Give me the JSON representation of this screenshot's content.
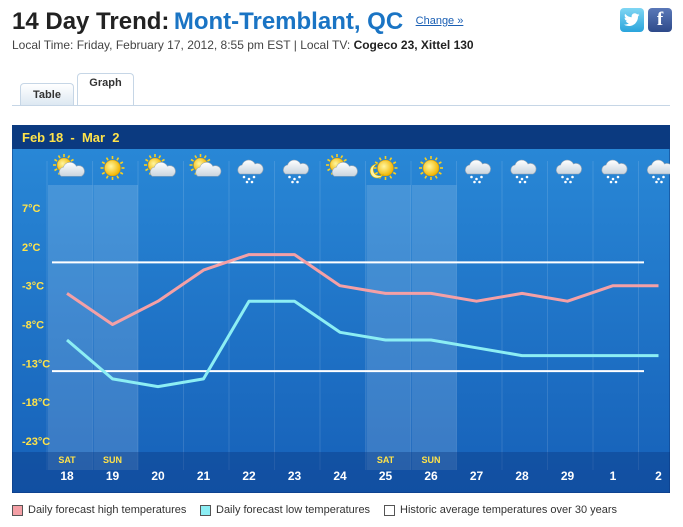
{
  "header": {
    "title_lead": "14 Day Trend:",
    "location": "Mont-Tremblant, QC",
    "change_label": "Change »",
    "local_time_label": "Local Time:",
    "local_time": "Friday, February 17, 2012, 8:55 pm EST",
    "separator": "|",
    "local_tv_label": "Local TV:",
    "local_tv": "Cogeco 23, Xittel 130"
  },
  "social": {
    "twitter_icon": "twitter-icon",
    "facebook_glyph": "f"
  },
  "tabs": [
    {
      "label": "Table",
      "active": false
    },
    {
      "label": "Graph",
      "active": true
    }
  ],
  "chart_data": {
    "type": "line",
    "title": "Feb 18  -  Mar  2",
    "x": [
      "18",
      "19",
      "20",
      "21",
      "22",
      "23",
      "24",
      "25",
      "26",
      "27",
      "28",
      "29",
      "1",
      "2"
    ],
    "weekend_labels": {
      "0": "SAT",
      "1": "SUN",
      "7": "SAT",
      "8": "SUN"
    },
    "icons": [
      "sun-cloud",
      "sun",
      "sun-cloud",
      "sun-cloud",
      "snow-cloud",
      "snow-cloud",
      "cloud-sun",
      "sun-moon",
      "sun",
      "snow-cloud",
      "snow-cloud",
      "snow-cloud",
      "snow-cloud",
      "snow-cloud"
    ],
    "y_ticks": [
      "7°C",
      "2°C",
      "-3°C",
      "-8°C",
      "-13°C",
      "-18°C",
      "-23°C"
    ],
    "ylim": [
      -23,
      7
    ],
    "series": [
      {
        "name": "Daily forecast high temperatures",
        "color": "#f4a0a6",
        "values": [
          -4,
          -8,
          -5,
          -1,
          1,
          1,
          -3,
          -4,
          -4,
          -5,
          -4,
          -5,
          -3,
          -3
        ]
      },
      {
        "name": "Daily forecast low temperatures",
        "color": "#8ceef4",
        "values": [
          -10,
          -15,
          -16,
          -15,
          -5,
          -5,
          -9,
          -10,
          -10,
          -11,
          -12,
          -12,
          -12,
          -12
        ]
      }
    ],
    "historic": {
      "name": "Historic average temperatures over 30 years",
      "color": "#ffffff",
      "values": [
        0,
        -14
      ]
    },
    "colors": {
      "bg_top": "#2a8ad8",
      "bg_bottom": "#1660b8",
      "header": "#0b3a80",
      "title": "#ffe34a",
      "axis_text": "#ffe34a",
      "weekend": "#ffffff"
    }
  },
  "legend": [
    {
      "label": "Daily forecast high temperatures",
      "color": "#f4a0a6"
    },
    {
      "label": "Daily forecast low temperatures",
      "color": "#8ceef4"
    },
    {
      "label": "Historic average temperatures over 30 years",
      "color": "#ffffff"
    }
  ]
}
